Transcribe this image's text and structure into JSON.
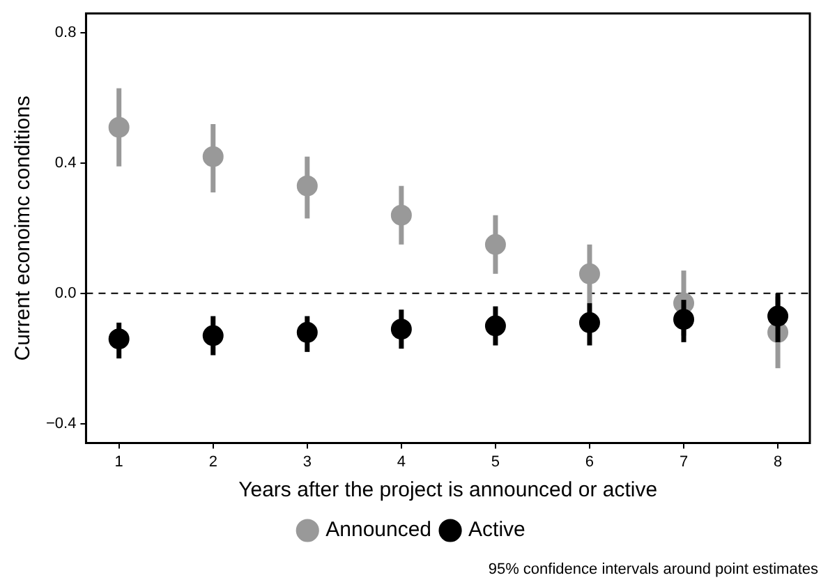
{
  "chart_data": {
    "type": "scatter",
    "xlabel": "Years after the project is announced or active",
    "ylabel": "Current econoimc conditions",
    "x": [
      1,
      2,
      3,
      4,
      5,
      6,
      7,
      8
    ],
    "series": [
      {
        "name": "Announced",
        "color": "#999999",
        "values": [
          0.51,
          0.42,
          0.33,
          0.24,
          0.15,
          0.06,
          -0.03,
          -0.12
        ],
        "errors": [
          [
            0.39,
            0.63
          ],
          [
            0.31,
            0.52
          ],
          [
            0.23,
            0.42
          ],
          [
            0.15,
            0.33
          ],
          [
            0.06,
            0.24
          ],
          [
            -0.03,
            0.15
          ],
          [
            -0.13,
            0.07
          ],
          [
            -0.23,
            -0.01
          ]
        ]
      },
      {
        "name": "Active",
        "color": "#000000",
        "values": [
          -0.14,
          -0.13,
          -0.12,
          -0.11,
          -0.1,
          -0.09,
          -0.08,
          -0.07
        ],
        "errors": [
          [
            -0.2,
            -0.09
          ],
          [
            -0.19,
            -0.07
          ],
          [
            -0.18,
            -0.07
          ],
          [
            -0.17,
            -0.05
          ],
          [
            -0.16,
            -0.04
          ],
          [
            -0.16,
            -0.03
          ],
          [
            -0.15,
            -0.02
          ],
          [
            -0.15,
            0.0
          ]
        ]
      }
    ],
    "xlim": [
      0.65,
      8.34
    ],
    "xticks": [
      1,
      2,
      3,
      4,
      5,
      6,
      7,
      8
    ],
    "ylim": [
      -0.46,
      0.86
    ],
    "yticks": [
      {
        "value": -0.4,
        "label": "−0.4"
      },
      {
        "value": 0,
        "label": "0.0"
      },
      0.4,
      0.8
    ],
    "ref_lines": [
      {
        "axis": "y",
        "value": 0,
        "color": "#000000",
        "line_style": "dashed"
      }
    ],
    "marker": "circle",
    "grid": false,
    "legend": "bottom",
    "annotations": [
      "95% confidence intervals around point estimates"
    ]
  }
}
